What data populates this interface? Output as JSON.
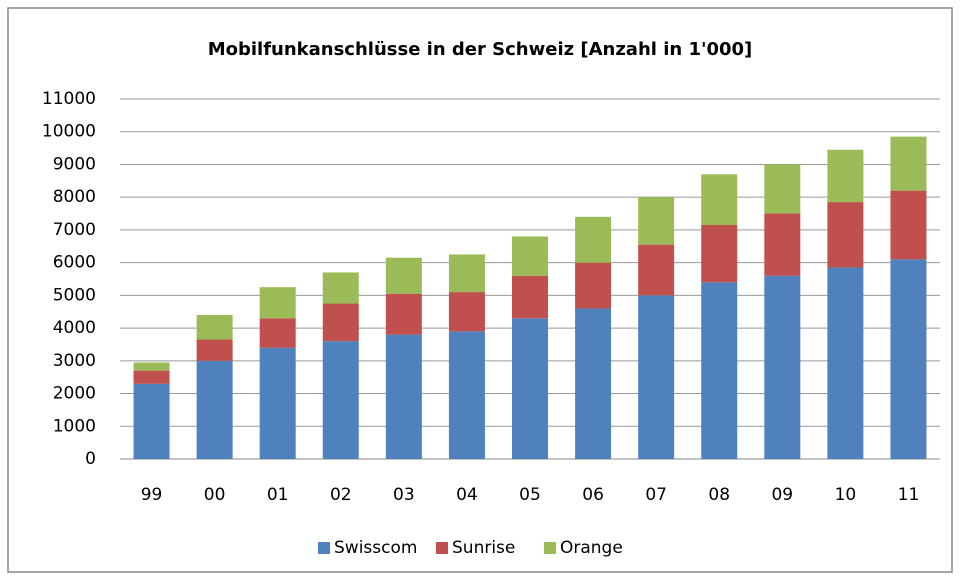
{
  "chart_data": {
    "type": "stacked-bar",
    "title": "Mobilfunkanschlüsse in der Schweiz [Anzahl in 1'000]",
    "categories": [
      "99",
      "00",
      "01",
      "02",
      "03",
      "04",
      "05",
      "06",
      "07",
      "08",
      "09",
      "10",
      "11"
    ],
    "series": [
      {
        "name": "Swisscom",
        "color": "#4f81bd",
        "values": [
          2300,
          3000,
          3400,
          3600,
          3800,
          3900,
          4300,
          4600,
          5000,
          5400,
          5600,
          5850,
          6100
        ]
      },
      {
        "name": "Sunrise",
        "color": "#c0504d",
        "values": [
          400,
          650,
          900,
          1150,
          1250,
          1200,
          1300,
          1400,
          1550,
          1750,
          1900,
          2000,
          2100
        ]
      },
      {
        "name": "Orange",
        "color": "#9bbb59",
        "values": [
          250,
          750,
          950,
          950,
          1100,
          1150,
          1200,
          1400,
          1450,
          1550,
          1500,
          1600,
          1650
        ]
      }
    ],
    "ylim": [
      0,
      11000
    ],
    "yticks": [
      0,
      1000,
      2000,
      3000,
      4000,
      5000,
      6000,
      7000,
      8000,
      9000,
      10000,
      11000
    ],
    "grid": true,
    "legend": "bottom"
  }
}
